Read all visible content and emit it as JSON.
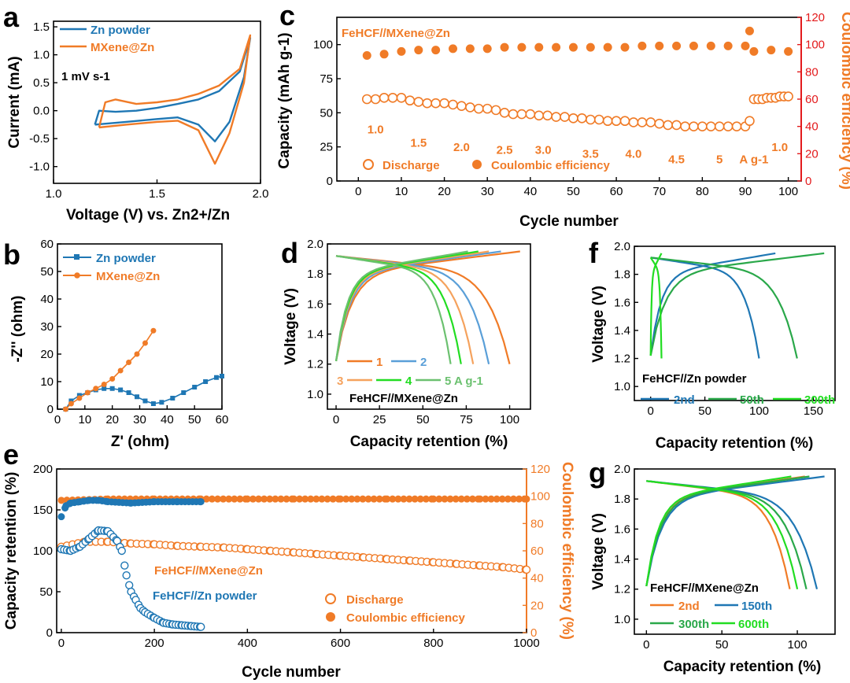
{
  "colors": {
    "blue": "#1f77b4",
    "orange": "#f07b27",
    "red": "#e31a1c",
    "grey": "#5a5a5a",
    "black": "#000000",
    "green1": "#2aa84a",
    "green2": "#22dd22",
    "blue2": "#5a9fd8",
    "orange2": "#f5a25d",
    "green3": "#6cc170"
  },
  "chart_data": [
    {
      "id": "a",
      "panel_label": "a",
      "type": "line",
      "xlabel": "Voltage (V) vs. Zn2+/Zn",
      "xlim": [
        1.0,
        2.0
      ],
      "xticks": [
        "1.0",
        "1.5",
        "2.0"
      ],
      "ylabel": "Current (mA)",
      "ylim": [
        -1.3,
        1.6
      ],
      "yticks": [
        "-1.0",
        "-0.5",
        "0.0",
        "0.5",
        "1.0",
        "1.5"
      ],
      "annotation": "1 mV s-1",
      "series": [
        {
          "name": "Zn powder",
          "color": "#1f77b4",
          "x": [
            1.2,
            1.35,
            1.5,
            1.6,
            1.7,
            1.78,
            1.85,
            1.92,
            1.95,
            1.9,
            1.8,
            1.7,
            1.6,
            1.5,
            1.4,
            1.3,
            1.22,
            1.2
          ],
          "y": [
            -0.25,
            -0.2,
            -0.15,
            -0.12,
            -0.25,
            -0.55,
            -0.2,
            0.6,
            1.3,
            0.7,
            0.35,
            0.2,
            0.12,
            0.05,
            0.0,
            -0.02,
            0.0,
            -0.25
          ]
        },
        {
          "name": "MXene@Zn",
          "color": "#f07b27",
          "x": [
            1.22,
            1.35,
            1.5,
            1.6,
            1.7,
            1.78,
            1.85,
            1.92,
            1.95,
            1.9,
            1.8,
            1.7,
            1.6,
            1.5,
            1.4,
            1.3,
            1.25,
            1.22
          ],
          "y": [
            -0.3,
            -0.25,
            -0.2,
            -0.18,
            -0.35,
            -0.95,
            -0.4,
            0.5,
            1.35,
            0.75,
            0.45,
            0.3,
            0.2,
            0.15,
            0.12,
            0.2,
            0.15,
            -0.3
          ]
        }
      ]
    },
    {
      "id": "c",
      "panel_label": "c",
      "type": "scatter",
      "title": "FeHCF//MXene@Zn",
      "xlabel": "Cycle number",
      "xlim": [
        -5,
        103
      ],
      "xticks": [
        "0",
        "10",
        "20",
        "30",
        "40",
        "50",
        "60",
        "70",
        "80",
        "90",
        "100"
      ],
      "ylabel": "Capacity (mAh g-1)",
      "ylim": [
        0,
        120
      ],
      "yticks": [
        "0",
        "25",
        "50",
        "75",
        "100"
      ],
      "y2label": "Coulombic efficiency (%)",
      "y2lim": [
        0,
        120
      ],
      "y2ticks": [
        "0",
        "20",
        "40",
        "60",
        "80",
        "100",
        "120"
      ],
      "rate_labels": [
        "1.0",
        "1.5",
        "2.0",
        "2.5",
        "3.0",
        "3.5",
        "4.0",
        "4.5",
        "5",
        "1.0"
      ],
      "rate_unit": "A g-1",
      "legend": [
        "Discharge",
        "Coulombic efficiency"
      ],
      "discharge": {
        "cycles": [
          2,
          4,
          6,
          8,
          10,
          12,
          14,
          16,
          18,
          20,
          22,
          24,
          26,
          28,
          30,
          32,
          34,
          36,
          38,
          40,
          42,
          44,
          46,
          48,
          50,
          52,
          54,
          56,
          58,
          60,
          62,
          64,
          66,
          68,
          70,
          72,
          74,
          76,
          78,
          80,
          82,
          84,
          86,
          88,
          90,
          91,
          92,
          93,
          94,
          95,
          96,
          97,
          98,
          99,
          100
        ],
        "values": [
          60,
          60,
          61,
          61,
          61,
          59,
          58,
          57,
          57,
          57,
          56,
          55,
          54,
          53,
          53,
          52,
          50,
          49,
          49,
          49,
          48,
          48,
          47,
          47,
          46,
          46,
          45,
          45,
          44,
          44,
          44,
          43,
          43,
          43,
          42,
          41,
          41,
          40,
          40,
          40,
          40,
          40,
          40,
          40,
          40,
          44,
          60,
          60,
          60,
          61,
          61,
          61,
          62,
          62,
          62
        ]
      },
      "ce": {
        "cycles": [
          2,
          6,
          10,
          14,
          18,
          22,
          26,
          30,
          34,
          38,
          42,
          46,
          50,
          54,
          58,
          62,
          66,
          70,
          74,
          78,
          82,
          86,
          90,
          91,
          92,
          96,
          100
        ],
        "values": [
          92,
          93,
          95,
          96,
          96,
          97,
          97,
          97,
          98,
          98,
          98,
          98,
          98,
          98,
          98,
          98,
          99,
          99,
          99,
          99,
          99,
          99,
          99,
          110,
          95,
          96,
          95
        ]
      }
    },
    {
      "id": "b",
      "panel_label": "b",
      "type": "line",
      "xlabel": "Z' (ohm)",
      "xlim": [
        0,
        60
      ],
      "xticks": [
        "0",
        "10",
        "20",
        "30",
        "40",
        "50",
        "60"
      ],
      "ylabel": "-Z'' (ohm)",
      "ylim": [
        0,
        60
      ],
      "yticks": [
        "0",
        "10",
        "20",
        "30",
        "40",
        "50",
        "60"
      ],
      "series": [
        {
          "name": "Zn powder",
          "color": "#1f77b4",
          "x": [
            3,
            5,
            8,
            11,
            14,
            17,
            20,
            23,
            26,
            29,
            32,
            35,
            38,
            42,
            46,
            50,
            54,
            58,
            60
          ],
          "y": [
            0,
            3,
            5,
            6,
            7,
            7.5,
            7.5,
            7,
            6,
            4.5,
            3,
            2,
            2.5,
            4,
            6,
            8,
            10,
            11.5,
            12
          ]
        },
        {
          "name": "MXene@Zn",
          "color": "#f07b27",
          "x": [
            3,
            5,
            8,
            11,
            14,
            17,
            20,
            23,
            26,
            29,
            32,
            35
          ],
          "y": [
            0,
            2,
            4,
            6,
            7.5,
            9,
            11,
            14,
            17,
            20,
            24,
            28.5
          ]
        }
      ]
    },
    {
      "id": "d",
      "panel_label": "d",
      "type": "line",
      "annotation": "FeHCF//MXene@Zn",
      "xlabel": "Capacity retention (%)",
      "xlim": [
        -5,
        112
      ],
      "xticks": [
        "0",
        "25",
        "50",
        "75",
        "100"
      ],
      "ylabel": "Voltage (V)",
      "ylim": [
        0.9,
        2.0
      ],
      "yticks": [
        "1.0",
        "1.2",
        "1.4",
        "1.6",
        "1.8",
        "2.0"
      ],
      "legend": [
        "1",
        "2",
        "3",
        "4",
        "5 A g-1"
      ],
      "series": [
        {
          "name": "1",
          "color": "#f07b27",
          "charge_end": 106,
          "discharge_end": 100
        },
        {
          "name": "2",
          "color": "#5a9fd8",
          "charge_end": 95,
          "discharge_end": 88
        },
        {
          "name": "3",
          "color": "#f5a25d",
          "charge_end": 88,
          "discharge_end": 79
        },
        {
          "name": "4",
          "color": "#22dd22",
          "charge_end": 82,
          "discharge_end": 72
        },
        {
          "name": "5 A g-1",
          "color": "#6cc170",
          "charge_end": 76,
          "discharge_end": 66
        }
      ]
    },
    {
      "id": "f",
      "panel_label": "f",
      "type": "line",
      "annotation": "FeHCF//Zn powder",
      "xlabel": "Capacity retention (%)",
      "xlim": [
        -15,
        170
      ],
      "xticks": [
        "0",
        "50",
        "100",
        "150"
      ],
      "ylabel": "Voltage (V)",
      "ylim": [
        0.9,
        2.0
      ],
      "yticks": [
        "1.0",
        "1.2",
        "1.4",
        "1.6",
        "1.8",
        "2.0"
      ],
      "legend": [
        "2nd",
        "50th",
        "300th"
      ],
      "series": [
        {
          "name": "2nd",
          "color": "#1f77b4",
          "charge_end": 115,
          "discharge_end": 100
        },
        {
          "name": "50th",
          "color": "#2aa84a",
          "charge_end": 160,
          "discharge_end": 135
        },
        {
          "name": "300th",
          "color": "#22dd22",
          "charge_end": 10,
          "discharge_end": 10
        }
      ]
    },
    {
      "id": "e",
      "panel_label": "e",
      "type": "scatter",
      "xlabel": "Cycle number",
      "xlim": [
        -10,
        1000
      ],
      "xticks": [
        "0",
        "200",
        "400",
        "600",
        "800",
        "1000"
      ],
      "ylabel": "Capacity retention (%)",
      "ylim": [
        0,
        200
      ],
      "yticks": [
        "0",
        "50",
        "100",
        "150",
        "200"
      ],
      "y2label": "Coulombic efficiency (%)",
      "y2lim": [
        0,
        120
      ],
      "y2ticks": [
        "0",
        "20",
        "40",
        "60",
        "80",
        "100",
        "120"
      ],
      "annotations": [
        "FeHCF//MXene@Zn",
        "FeHCF//Zn powder"
      ],
      "legend": [
        "Discharge",
        "Coulombic efficiency"
      ],
      "discharge_mxene": {
        "cycles": [
          0,
          50,
          100,
          150,
          200,
          250,
          300,
          350,
          400,
          450,
          500,
          550,
          600,
          650,
          700,
          750,
          800,
          850,
          900,
          950,
          1000
        ],
        "values": [
          105,
          111,
          111,
          109,
          108,
          106,
          105,
          104,
          102,
          100,
          98,
          96,
          94,
          92,
          90,
          88,
          86,
          84,
          82,
          80,
          77
        ]
      },
      "discharge_zn": {
        "cycles": [
          0,
          20,
          40,
          60,
          80,
          100,
          120,
          130,
          140,
          150,
          160,
          170,
          180,
          200,
          220,
          240,
          260,
          280,
          300
        ],
        "values": [
          102,
          100,
          105,
          115,
          125,
          124,
          112,
          100,
          70,
          50,
          40,
          30,
          25,
          18,
          12,
          10,
          9,
          8,
          7
        ]
      },
      "ce_mxene": {
        "cycles": [
          0,
          100,
          200,
          300,
          400,
          500,
          600,
          700,
          800,
          900,
          1000
        ],
        "values": [
          97,
          98,
          98,
          98,
          98,
          98,
          98,
          98,
          98,
          98,
          98
        ]
      },
      "ce_zn": {
        "cycles": [
          0,
          10,
          20,
          40,
          60,
          80,
          100,
          150,
          200,
          250,
          300
        ],
        "values": [
          85,
          93,
          95,
          96,
          97,
          97,
          96,
          95,
          96,
          96,
          96
        ]
      }
    },
    {
      "id": "g",
      "panel_label": "g",
      "type": "line",
      "annotation": "FeHCF//MXene@Zn",
      "xlabel": "Capacity retention (%)",
      "xlim": [
        -8,
        125
      ],
      "xticks": [
        "0",
        "50",
        "100"
      ],
      "ylabel": "Voltage (V)",
      "ylim": [
        0.9,
        2.0
      ],
      "yticks": [
        "1.0",
        "1.2",
        "1.4",
        "1.6",
        "1.8",
        "2.0"
      ],
      "legend": [
        "2nd",
        "150th",
        "300th",
        "600th"
      ],
      "series": [
        {
          "name": "2nd",
          "color": "#f07b27",
          "charge_end": 105,
          "discharge_end": 95
        },
        {
          "name": "150th",
          "color": "#1f77b4",
          "charge_end": 118,
          "discharge_end": 113
        },
        {
          "name": "300th",
          "color": "#2aa84a",
          "charge_end": 108,
          "discharge_end": 106
        },
        {
          "name": "600th",
          "color": "#22dd22",
          "charge_end": 96,
          "discharge_end": 100
        }
      ]
    }
  ]
}
